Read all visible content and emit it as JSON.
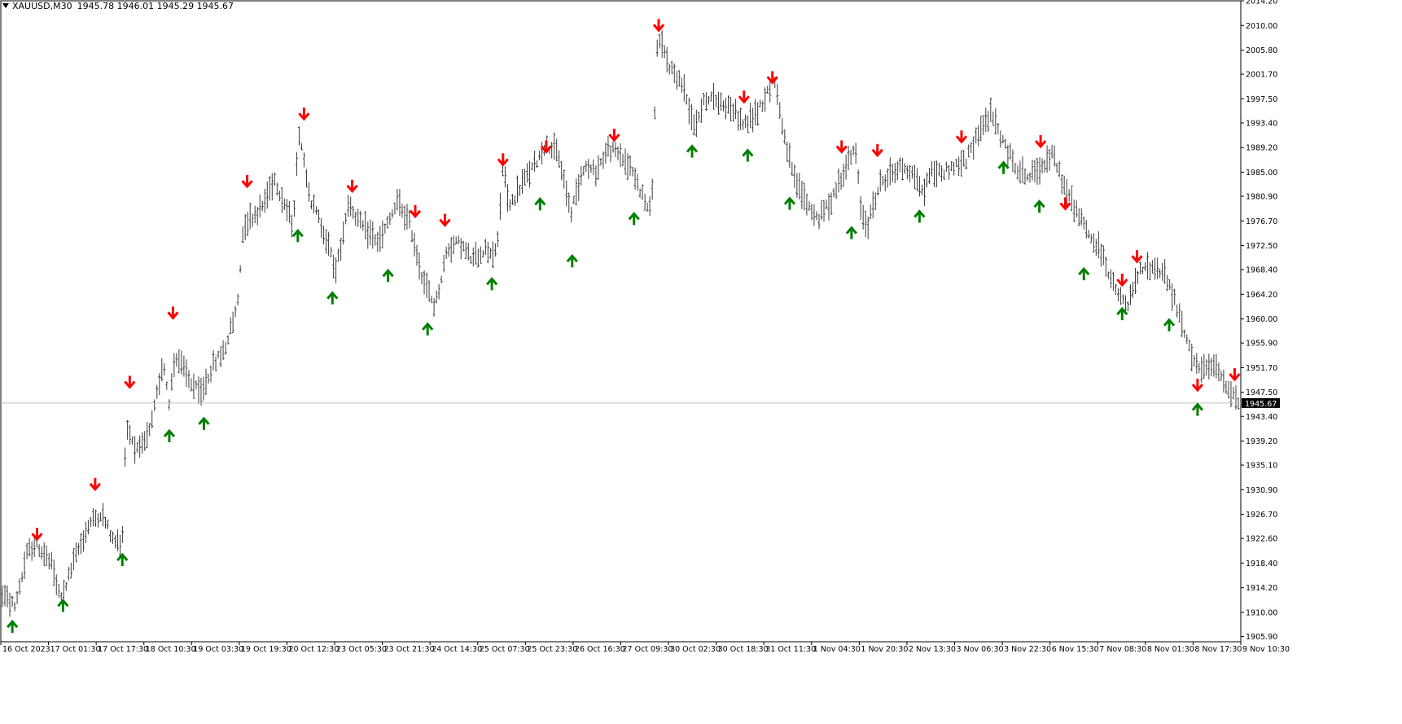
{
  "header": {
    "symbol": "XAUUSD,M30",
    "ohlc": "1945.78 1946.01 1945.29 1945.67"
  },
  "chart_data": {
    "type": "ohlc-bars",
    "symbol": "XAUUSD",
    "timeframe": "M30",
    "ylim": [
      1905.0,
      2014.2
    ],
    "y_ticks": [
      "2014.20",
      "2010.00",
      "2005.80",
      "2001.70",
      "1997.50",
      "1993.40",
      "1989.20",
      "1985.00",
      "1980.90",
      "1976.70",
      "1972.50",
      "1968.40",
      "1964.20",
      "1960.00",
      "1955.90",
      "1951.70",
      "1947.50",
      "1943.40",
      "1939.20",
      "1935.10",
      "1930.90",
      "1926.70",
      "1922.60",
      "1918.40",
      "1914.20",
      "1910.00",
      "1905.90"
    ],
    "x_ticks": [
      "16 Oct 2023",
      "17 Oct 01:30",
      "17 Oct 17:30",
      "18 Oct 10:30",
      "19 Oct 03:30",
      "19 Oct 19:30",
      "20 Oct 12:30",
      "23 Oct 05:30",
      "23 Oct 21:30",
      "24 Oct 14:30",
      "25 Oct 07:30",
      "25 Oct 23:30",
      "26 Oct 16:30",
      "27 Oct 09:30",
      "30 Oct 02:30",
      "30 Oct 18:30",
      "31 Oct 11:30",
      "1 Nov 04:30",
      "1 Nov 20:30",
      "2 Nov 13:30",
      "3 Nov 06:30",
      "3 Nov 22:30",
      "6 Nov 15:30",
      "7 Nov 08:30",
      "8 Nov 01:30",
      "8 Nov 17:30",
      "9 Nov 10:30"
    ],
    "current_price": 1945.67,
    "current_price_label": "1945.67",
    "price_path": [
      [
        0,
        1913
      ],
      [
        0.01,
        1911
      ],
      [
        0.02,
        1920
      ],
      [
        0.027,
        1922
      ],
      [
        0.04,
        1918
      ],
      [
        0.047,
        1912
      ],
      [
        0.06,
        1920
      ],
      [
        0.07,
        1925
      ],
      [
        0.08,
        1927
      ],
      [
        0.09,
        1922
      ],
      [
        0.097,
        1922
      ],
      [
        0.1,
        1942
      ],
      [
        0.11,
        1937
      ],
      [
        0.12,
        1941
      ],
      [
        0.13,
        1953
      ],
      [
        0.135,
        1946
      ],
      [
        0.14,
        1954
      ],
      [
        0.15,
        1950
      ],
      [
        0.16,
        1947
      ],
      [
        0.17,
        1952
      ],
      [
        0.18,
        1955
      ],
      [
        0.19,
        1962
      ],
      [
        0.195,
        1976
      ],
      [
        0.21,
        1979
      ],
      [
        0.22,
        1984
      ],
      [
        0.235,
        1976
      ],
      [
        0.24,
        1992
      ],
      [
        0.25,
        1980
      ],
      [
        0.26,
        1975
      ],
      [
        0.27,
        1968
      ],
      [
        0.28,
        1980
      ],
      [
        0.29,
        1976
      ],
      [
        0.305,
        1973
      ],
      [
        0.32,
        1980
      ],
      [
        0.33,
        1976
      ],
      [
        0.34,
        1967
      ],
      [
        0.35,
        1962
      ],
      [
        0.36,
        1972
      ],
      [
        0.37,
        1973
      ],
      [
        0.38,
        1970
      ],
      [
        0.39,
        1972
      ],
      [
        0.4,
        1971
      ],
      [
        0.405,
        1986
      ],
      [
        0.41,
        1979
      ],
      [
        0.42,
        1983
      ],
      [
        0.43,
        1986
      ],
      [
        0.44,
        1990
      ],
      [
        0.45,
        1988
      ],
      [
        0.46,
        1978
      ],
      [
        0.465,
        1982
      ],
      [
        0.47,
        1986
      ],
      [
        0.48,
        1985
      ],
      [
        0.49,
        1989
      ],
      [
        0.5,
        1988
      ],
      [
        0.51,
        1985
      ],
      [
        0.52,
        1980
      ],
      [
        0.525,
        1978
      ],
      [
        0.53,
        2008
      ],
      [
        0.54,
        2003
      ],
      [
        0.55,
        2000
      ],
      [
        0.56,
        1993
      ],
      [
        0.57,
        1998
      ],
      [
        0.58,
        1997
      ],
      [
        0.59,
        1996
      ],
      [
        0.6,
        1993
      ],
      [
        0.61,
        1995
      ],
      [
        0.62,
        1999
      ],
      [
        0.625,
        2001
      ],
      [
        0.63,
        1994
      ],
      [
        0.64,
        1984
      ],
      [
        0.65,
        1980
      ],
      [
        0.66,
        1977
      ],
      [
        0.67,
        1980
      ],
      [
        0.68,
        1985
      ],
      [
        0.69,
        1989
      ],
      [
        0.695,
        1978
      ],
      [
        0.7,
        1976
      ],
      [
        0.71,
        1983
      ],
      [
        0.72,
        1985
      ],
      [
        0.73,
        1986
      ],
      [
        0.74,
        1984
      ],
      [
        0.745,
        1981
      ],
      [
        0.75,
        1985
      ],
      [
        0.76,
        1985
      ],
      [
        0.77,
        1986
      ],
      [
        0.78,
        1987
      ],
      [
        0.79,
        1992
      ],
      [
        0.8,
        1995
      ],
      [
        0.81,
        1990
      ],
      [
        0.82,
        1986
      ],
      [
        0.83,
        1984
      ],
      [
        0.84,
        1986
      ],
      [
        0.85,
        1988
      ],
      [
        0.86,
        1982
      ],
      [
        0.87,
        1978
      ],
      [
        0.88,
        1974
      ],
      [
        0.89,
        1971
      ],
      [
        0.9,
        1965
      ],
      [
        0.91,
        1962
      ],
      [
        0.92,
        1968
      ],
      [
        0.93,
        1969
      ],
      [
        0.94,
        1968
      ],
      [
        0.95,
        1962
      ],
      [
        0.96,
        1955
      ],
      [
        0.97,
        1951
      ],
      [
        0.98,
        1952
      ],
      [
        0.99,
        1949
      ],
      [
        1.0,
        1946
      ]
    ],
    "arrows_down": [
      {
        "t": 0.028,
        "p": 1923.3
      },
      {
        "t": 0.075,
        "p": 1931.8
      },
      {
        "t": 0.103,
        "p": 1949.2
      },
      {
        "t": 0.138,
        "p": 1961.0
      },
      {
        "t": 0.198,
        "p": 1983.4
      },
      {
        "t": 0.244,
        "p": 1994.9
      },
      {
        "t": 0.283,
        "p": 1982.6
      },
      {
        "t": 0.334,
        "p": 1978.3
      },
      {
        "t": 0.358,
        "p": 1976.8
      },
      {
        "t": 0.405,
        "p": 1987.1
      },
      {
        "t": 0.44,
        "p": 1989.3
      },
      {
        "t": 0.495,
        "p": 1991.3
      },
      {
        "t": 0.531,
        "p": 2010.0
      },
      {
        "t": 0.6,
        "p": 1997.8
      },
      {
        "t": 0.623,
        "p": 2001.1
      },
      {
        "t": 0.679,
        "p": 1989.3
      },
      {
        "t": 0.708,
        "p": 1988.7
      },
      {
        "t": 0.776,
        "p": 1991.0
      },
      {
        "t": 0.84,
        "p": 1990.2
      },
      {
        "t": 0.86,
        "p": 1979.6
      },
      {
        "t": 0.906,
        "p": 1966.6
      },
      {
        "t": 0.918,
        "p": 1970.6
      },
      {
        "t": 0.967,
        "p": 1948.7
      },
      {
        "t": 0.997,
        "p": 1950.5
      }
    ],
    "arrows_up": [
      {
        "t": 0.008,
        "p": 1907.6
      },
      {
        "t": 0.049,
        "p": 1911.2
      },
      {
        "t": 0.097,
        "p": 1919.0
      },
      {
        "t": 0.135,
        "p": 1940.1
      },
      {
        "t": 0.163,
        "p": 1942.2
      },
      {
        "t": 0.239,
        "p": 1974.2
      },
      {
        "t": 0.267,
        "p": 1963.6
      },
      {
        "t": 0.312,
        "p": 1967.4
      },
      {
        "t": 0.344,
        "p": 1958.3
      },
      {
        "t": 0.396,
        "p": 1966.0
      },
      {
        "t": 0.435,
        "p": 1979.6
      },
      {
        "t": 0.461,
        "p": 1969.9
      },
      {
        "t": 0.511,
        "p": 1977.1
      },
      {
        "t": 0.558,
        "p": 1988.6
      },
      {
        "t": 0.603,
        "p": 1987.9
      },
      {
        "t": 0.637,
        "p": 1979.7
      },
      {
        "t": 0.687,
        "p": 1974.7
      },
      {
        "t": 0.742,
        "p": 1977.5
      },
      {
        "t": 0.81,
        "p": 1985.8
      },
      {
        "t": 0.839,
        "p": 1979.2
      },
      {
        "t": 0.875,
        "p": 1967.7
      },
      {
        "t": 0.906,
        "p": 1960.9
      },
      {
        "t": 0.944,
        "p": 1959.0
      },
      {
        "t": 0.967,
        "p": 1944.6
      }
    ],
    "colors": {
      "bars": "#3c3c3c",
      "up": "#008000",
      "down": "#ff0000",
      "price_line": "#c0c0c0",
      "price_tag_bg": "#000000",
      "price_tag_text": "#ffffff"
    }
  }
}
